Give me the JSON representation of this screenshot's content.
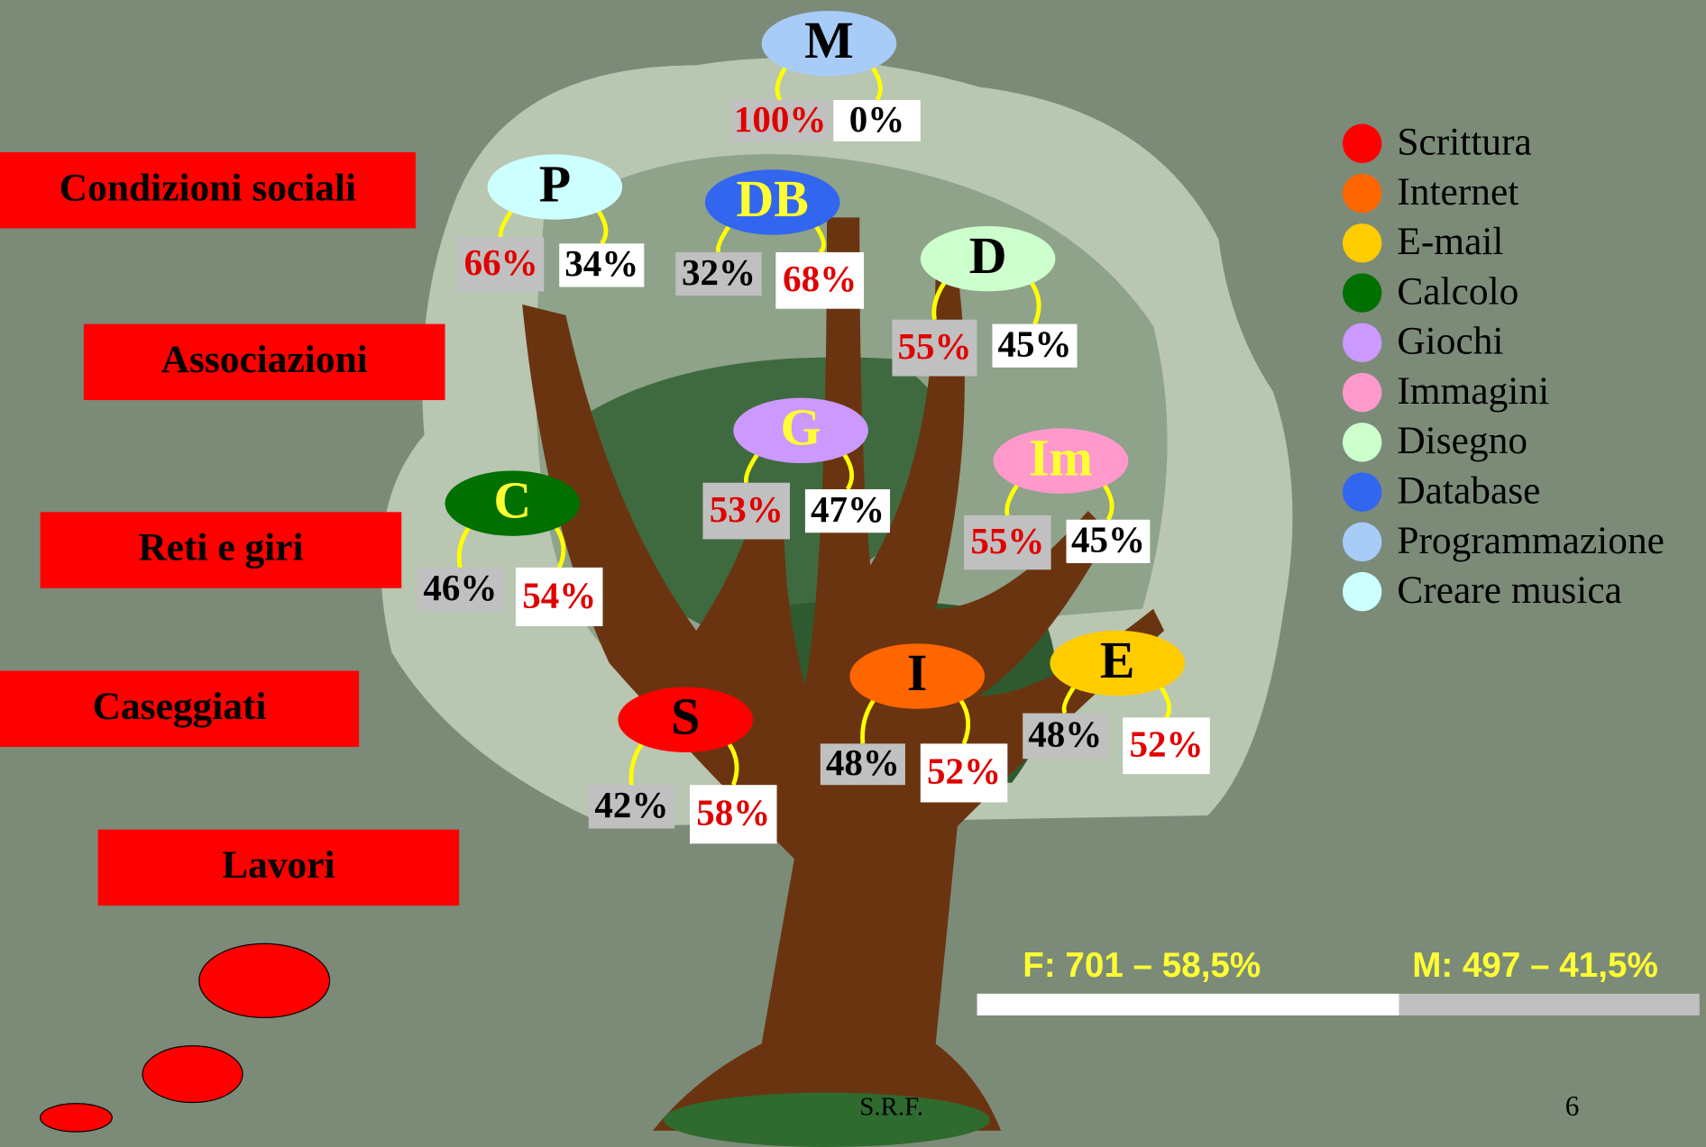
{
  "categories": [
    "Condizioni sociali",
    "Associazioni",
    "Reti e giri",
    "Caseggiati",
    "Lavori"
  ],
  "nodes": [
    {
      "label": "M",
      "color": "#a8ccf8",
      "text_color": "#000000",
      "left": {
        "text": "100%",
        "color": "#e00000"
      },
      "right": {
        "text": "0%",
        "color": "#000000"
      }
    },
    {
      "label": "P",
      "color": "#ccffff",
      "text_color": "#000000",
      "left": {
        "text": "66%",
        "color": "#e00000"
      },
      "right": {
        "text": "34%",
        "color": "#000000"
      }
    },
    {
      "label": "DB",
      "color": "#3366ee",
      "text_color": "#ffff33",
      "left": {
        "text": "32%",
        "color": "#000000"
      },
      "right": {
        "text": "68%",
        "color": "#e00000"
      }
    },
    {
      "label": "D",
      "color": "#ccffcc",
      "text_color": "#000000",
      "left": {
        "text": "55%",
        "color": "#e00000"
      },
      "right": {
        "text": "45%",
        "color": "#000000"
      }
    },
    {
      "label": "G",
      "color": "#cc99ff",
      "text_color": "#ffff33",
      "left": {
        "text": "53%",
        "color": "#e00000"
      },
      "right": {
        "text": "47%",
        "color": "#000000"
      }
    },
    {
      "label": "Im",
      "color": "#ff99cc",
      "text_color": "#ffff33",
      "left": {
        "text": "55%",
        "color": "#e00000"
      },
      "right": {
        "text": "45%",
        "color": "#000000"
      }
    },
    {
      "label": "C",
      "color": "#007000",
      "text_color": "#ffff33",
      "left": {
        "text": "46%",
        "color": "#000000"
      },
      "right": {
        "text": "54%",
        "color": "#e00000"
      }
    },
    {
      "label": "S",
      "color": "#ff0000",
      "text_color": "#000000",
      "left": {
        "text": "42%",
        "color": "#000000"
      },
      "right": {
        "text": "58%",
        "color": "#e00000"
      }
    },
    {
      "label": "I",
      "color": "#ff6600",
      "text_color": "#000000",
      "left": {
        "text": "48%",
        "color": "#000000"
      },
      "right": {
        "text": "52%",
        "color": "#e00000"
      }
    },
    {
      "label": "E",
      "color": "#ffcc00",
      "text_color": "#000000",
      "left": {
        "text": "48%",
        "color": "#000000"
      },
      "right": {
        "text": "52%",
        "color": "#e00000"
      }
    }
  ],
  "legend": [
    {
      "name": "Scrittura",
      "color": "#ff0000"
    },
    {
      "name": "Internet",
      "color": "#ff6600"
    },
    {
      "name": "E-mail",
      "color": "#ffcc00"
    },
    {
      "name": "Calcolo",
      "color": "#007000"
    },
    {
      "name": "Giochi",
      "color": "#cc99ff"
    },
    {
      "name": "Immagini",
      "color": "#ff99cc"
    },
    {
      "name": "Disegno",
      "color": "#ccffcc"
    },
    {
      "name": "Database",
      "color": "#3366ee"
    },
    {
      "name": "Programmazione",
      "color": "#a8ccf8"
    },
    {
      "name": "Creare musica",
      "color": "#ccffff"
    }
  ],
  "summary": {
    "female": "F:  701 – 58,5%",
    "male": "M:  497 – 41,5%"
  },
  "footer": {
    "author": "S.R.F.",
    "page": "6"
  }
}
